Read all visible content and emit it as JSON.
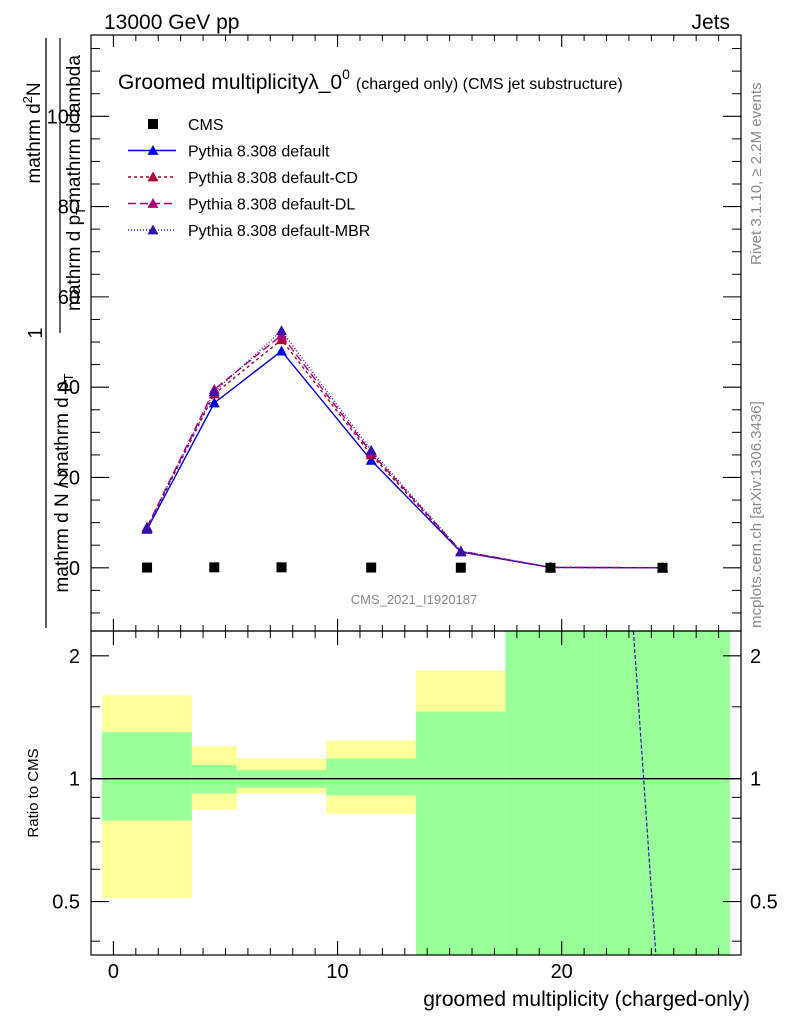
{
  "header": {
    "left": "13000 GeV pp",
    "right": "Jets"
  },
  "side_labels": {
    "rivet": "Rivet 3.1.10, ≥ 2.2M events",
    "mcplots": "mcplots.cern.ch [arXiv:1306.3436]"
  },
  "watermark": "CMS_2021_I1920187",
  "chart_data": [
    {
      "type": "line",
      "title_main": "Groomed multiplicityλ_0",
      "title_sup": "0",
      "title_rest": "(charged only) (CMS jet substructure)",
      "ylabel": {
        "frac_num": "1",
        "den_part1": "mathrm d N / mathrm d p",
        "den_sub1": "T",
        "num_part2": "mathrm d",
        "num_sup2": "2",
        "num_tail2": "N",
        "den_part2": "mathrm d p",
        "den_sub2": "T",
        "den_tail2": "mathrm d lambda"
      },
      "xlim": [
        -1,
        28
      ],
      "ylim": [
        -14,
        118
      ],
      "y_ticks": [
        0,
        20,
        40,
        60,
        80,
        100
      ],
      "x_ticks": [
        0,
        10,
        20
      ],
      "legend_position": "top-left",
      "cms": {
        "name": "CMS",
        "x": [
          1.5,
          4.5,
          7.5,
          11.5,
          15.5,
          19.5,
          24.5
        ],
        "y": [
          0.05,
          0.1,
          0.1,
          0.05,
          0.02,
          0.005,
          0.0
        ]
      },
      "series": [
        {
          "name": "Pythia 8.308 default",
          "color": "#0000dd",
          "dash": "none",
          "x": [
            1.5,
            4.5,
            7.5,
            11.5,
            15.5,
            19.5,
            24.5
          ],
          "y": [
            8.5,
            36.5,
            48.0,
            23.8,
            3.5,
            0.08,
            0.0
          ]
        },
        {
          "name": "Pythia 8.308 default-CD",
          "color": "#aa0033",
          "dash": "3,3",
          "x": [
            1.5,
            4.5,
            7.5,
            11.5,
            15.5,
            19.5,
            24.5
          ],
          "y": [
            8.8,
            38.5,
            50.5,
            25.0,
            3.6,
            0.09,
            0.0
          ]
        },
        {
          "name": "Pythia 8.308 default-DL",
          "color": "#aa0077",
          "dash": "8,4",
          "x": [
            1.5,
            4.5,
            7.5,
            11.5,
            15.5,
            19.5,
            24.5
          ],
          "y": [
            9.0,
            39.5,
            51.5,
            25.5,
            3.7,
            0.09,
            0.0
          ]
        },
        {
          "name": "Pythia 8.308 default-MBR",
          "color": "#3311aa",
          "dash": "1,2",
          "x": [
            1.5,
            4.5,
            7.5,
            11.5,
            15.5,
            19.5,
            24.5
          ],
          "y": [
            8.9,
            39.0,
            52.5,
            26.0,
            3.7,
            0.09,
            0.0
          ]
        }
      ]
    },
    {
      "type": "bar",
      "ylabel": "Ratio to CMS",
      "xlabel": "groomed multiplicity (charged-only)",
      "ylim": [
        0.37,
        2.3
      ],
      "y_scale": "log",
      "y_ticks": [
        0.5,
        1,
        2
      ],
      "y_tick_labels": [
        "0.5",
        "1",
        "2"
      ],
      "x_ticks": [
        0,
        10,
        20
      ],
      "bins": [
        {
          "x0": -0.5,
          "x1": 3.5,
          "stat": [
            0.79,
            1.3
          ],
          "total": [
            0.51,
            1.6
          ]
        },
        {
          "x0": 3.5,
          "x1": 5.5,
          "stat": [
            0.92,
            1.08
          ],
          "total": [
            0.84,
            1.2
          ]
        },
        {
          "x0": 5.5,
          "x1": 9.5,
          "stat": [
            0.95,
            1.05
          ],
          "total": [
            0.92,
            1.12
          ]
        },
        {
          "x0": 9.5,
          "x1": 13.5,
          "stat": [
            0.91,
            1.12
          ],
          "total": [
            0.82,
            1.24
          ]
        },
        {
          "x0": 13.5,
          "x1": 17.5,
          "stat": [
            0.37,
            1.46
          ],
          "total": [
            0.37,
            1.84
          ]
        },
        {
          "x0": 17.5,
          "x1": 21.5,
          "stat": [
            0.37,
            2.3
          ],
          "total": [
            0.37,
            2.3
          ]
        },
        {
          "x0": 21.5,
          "x1": 27.5,
          "stat": [
            0.37,
            2.3
          ],
          "total": [
            0.37,
            2.3
          ]
        }
      ],
      "diverging_line": {
        "x": [
          23.2,
          24.2
        ],
        "y": [
          2.3,
          0.37
        ]
      }
    }
  ],
  "colors": {
    "stat_band": "#99ff99",
    "total_band": "#ffff99",
    "reference": "#000000"
  }
}
